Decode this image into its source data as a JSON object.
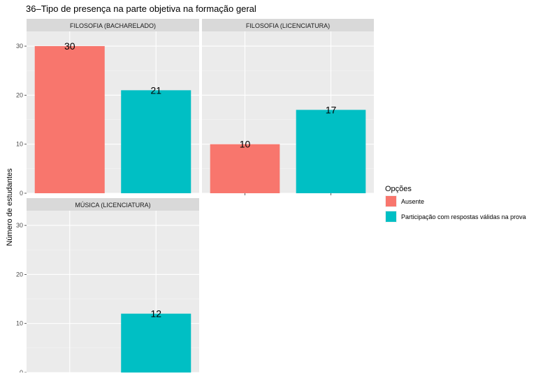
{
  "chart_data": {
    "type": "bar",
    "title": "36–Tipo de presença na parte objetiva na formação geral",
    "xlabel": "",
    "ylabel": "Número de estudantes",
    "ylim": [
      0,
      33
    ],
    "yticks": [
      0,
      10,
      20,
      30
    ],
    "grid": true,
    "legend_position": "right",
    "legend": {
      "title": "Opções",
      "entries": [
        {
          "name": "Ausente",
          "color": "#F8766D"
        },
        {
          "name": "Participação com respostas válidas na prova",
          "color": "#00BFC4"
        }
      ]
    },
    "panels": [
      {
        "title": "FILOSOFIA (BACHARELADO)",
        "bars": [
          {
            "category": "Ausente",
            "value": 30,
            "label": "30"
          },
          {
            "category": "Participação com respostas válidas na prova",
            "value": 21,
            "label": "21"
          }
        ]
      },
      {
        "title": "FILOSOFIA (LICENCIATURA)",
        "bars": [
          {
            "category": "Ausente",
            "value": 10,
            "label": "10"
          },
          {
            "category": "Participação com respostas válidas na prova",
            "value": 17,
            "label": "17"
          }
        ]
      },
      {
        "title": "MÚSICA (LICENCIATURA)",
        "bars": [
          {
            "category": "Ausente",
            "value": 0,
            "label": ""
          },
          {
            "category": "Participação com respostas válidas na prova",
            "value": 12,
            "label": "12"
          }
        ]
      }
    ]
  }
}
